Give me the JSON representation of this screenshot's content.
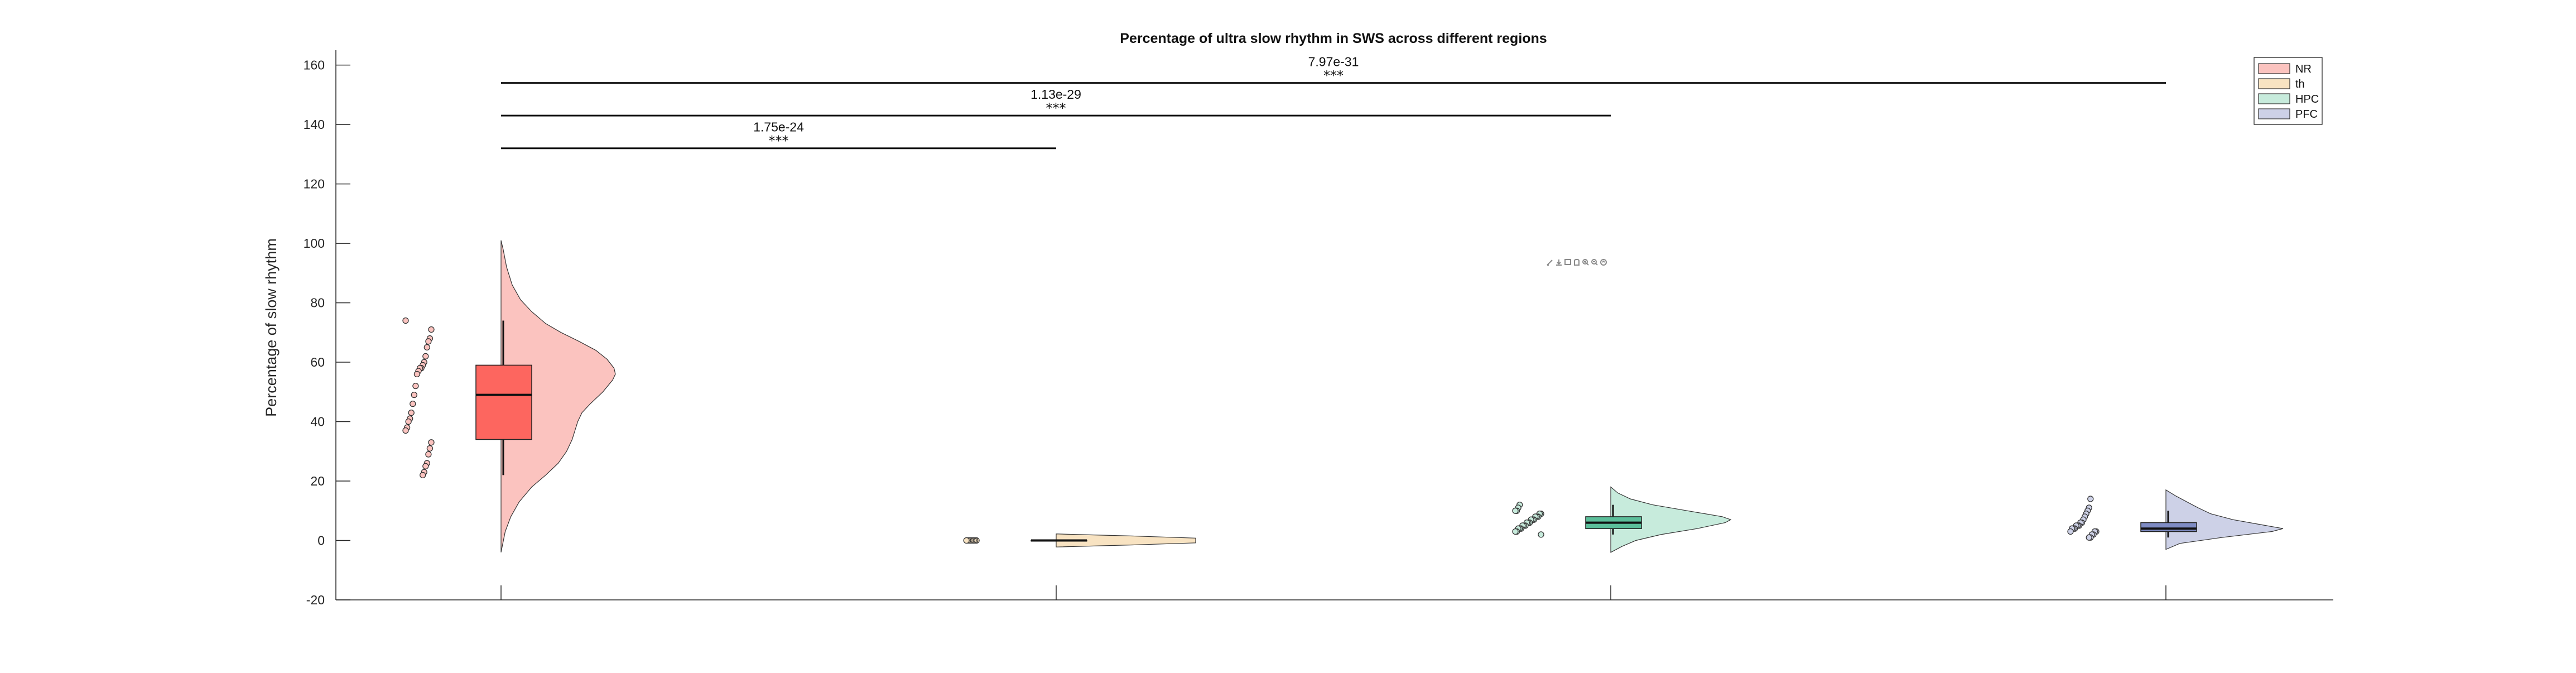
{
  "chart_data": {
    "type": "raincloud",
    "title": "Percentage of ultra slow rhythm in SWS across different regions",
    "xlabel": "",
    "ylabel": "Percentage of slow rhythm",
    "ylim": [
      -20,
      165
    ],
    "yticks": [
      -20,
      0,
      20,
      40,
      60,
      80,
      100,
      120,
      140,
      160
    ],
    "ytick_labels": [
      "-20",
      "0",
      "20",
      "40",
      "60",
      "80",
      "100",
      "120",
      "140",
      "160"
    ],
    "grid": false,
    "legend_position": "top-right",
    "categories": [
      "NR",
      "th",
      "HPC",
      "PFC"
    ],
    "series": [
      {
        "name": "NR",
        "color": "#FD665F",
        "cloud_color": "#FBC3BF",
        "box": {
          "q1": 34,
          "median": 49,
          "q3": 59,
          "whisker_low": 22,
          "whisker_high": 74
        },
        "points": [
          74,
          71,
          68,
          67,
          65,
          62,
          60,
          59,
          58,
          58,
          57,
          56,
          52,
          49,
          46,
          43,
          41,
          40,
          38,
          37,
          33,
          31,
          29,
          26,
          25,
          23,
          22
        ],
        "density": [
          [
            -4,
            0.0
          ],
          [
            3,
            0.03
          ],
          [
            8,
            0.07
          ],
          [
            13,
            0.13
          ],
          [
            18,
            0.22
          ],
          [
            22,
            0.32
          ],
          [
            26,
            0.41
          ],
          [
            30,
            0.47
          ],
          [
            34,
            0.51
          ],
          [
            37,
            0.53
          ],
          [
            40,
            0.55
          ],
          [
            43,
            0.58
          ],
          [
            46,
            0.64
          ],
          [
            50,
            0.73
          ],
          [
            54,
            0.8
          ],
          [
            56,
            0.82
          ],
          [
            58,
            0.81
          ],
          [
            61,
            0.76
          ],
          [
            64,
            0.68
          ],
          [
            67,
            0.56
          ],
          [
            70,
            0.43
          ],
          [
            73,
            0.32
          ],
          [
            77,
            0.22
          ],
          [
            81,
            0.14
          ],
          [
            86,
            0.08
          ],
          [
            92,
            0.04
          ],
          [
            98,
            0.015
          ],
          [
            101,
            0.0
          ]
        ]
      },
      {
        "name": "th",
        "color": "#F8D7A4",
        "cloud_color": "#F8E3C2",
        "box": {
          "q1": 0,
          "median": 0,
          "q3": 0,
          "whisker_low": 0,
          "whisker_high": 0
        },
        "points": [
          0,
          0,
          0,
          0,
          0,
          0,
          0,
          0
        ],
        "density": [
          [
            -2.2,
            0.0
          ],
          [
            -1.5,
            0.55
          ],
          [
            -0.8,
            1.0
          ],
          [
            0,
            1.0
          ],
          [
            0.8,
            1.0
          ],
          [
            1.5,
            0.55
          ],
          [
            2.2,
            0.0
          ]
        ]
      },
      {
        "name": "HPC",
        "color": "#5BBE9A",
        "cloud_color": "#C7EBDC",
        "box": {
          "q1": 4,
          "median": 6,
          "q3": 8,
          "whisker_low": 2,
          "whisker_high": 12
        },
        "points": [
          12,
          11,
          10,
          10,
          9,
          9,
          8,
          8,
          8,
          7,
          7,
          7,
          6,
          6,
          6,
          5,
          5,
          5,
          4,
          4,
          4,
          3,
          3,
          2
        ],
        "density": [
          [
            -4,
            0.0
          ],
          [
            -2,
            0.08
          ],
          [
            0,
            0.18
          ],
          [
            2,
            0.36
          ],
          [
            4,
            0.62
          ],
          [
            6,
            0.82
          ],
          [
            7,
            0.86
          ],
          [
            8,
            0.8
          ],
          [
            10,
            0.55
          ],
          [
            12,
            0.3
          ],
          [
            14,
            0.14
          ],
          [
            16,
            0.05
          ],
          [
            18,
            0.0
          ]
        ]
      },
      {
        "name": "PFC",
        "color": "#7F8CC4",
        "cloud_color": "#CDD1E7",
        "box": {
          "q1": 3,
          "median": 4,
          "q3": 6,
          "whisker_low": 1,
          "whisker_high": 10
        },
        "points": [
          14,
          11,
          10,
          9,
          8,
          7,
          6,
          6,
          5,
          5,
          5,
          4,
          4,
          4,
          3,
          3,
          3,
          2,
          2,
          1,
          1
        ],
        "density": [
          [
            -3,
            0.0
          ],
          [
            -1,
            0.1
          ],
          [
            1,
            0.4
          ],
          [
            3,
            0.76
          ],
          [
            4,
            0.84
          ],
          [
            5,
            0.72
          ],
          [
            7,
            0.48
          ],
          [
            9,
            0.32
          ],
          [
            11,
            0.23
          ],
          [
            13,
            0.15
          ],
          [
            15,
            0.07
          ],
          [
            17,
            0.0
          ]
        ]
      }
    ],
    "comparisons": [
      {
        "from": "NR",
        "to": "th",
        "y": 132,
        "p_value": "1.75e-24",
        "stars": "***"
      },
      {
        "from": "NR",
        "to": "HPC",
        "y": 143,
        "p_value": "1.13e-29",
        "stars": "***"
      },
      {
        "from": "NR",
        "to": "PFC",
        "y": 154,
        "p_value": "7.97e-31",
        "stars": "***"
      }
    ]
  },
  "toolbar": {
    "icons": [
      "brush-icon",
      "export-icon",
      "data-tip-icon",
      "pan-icon",
      "zoom-in-icon",
      "zoom-out-icon",
      "home-icon"
    ]
  }
}
